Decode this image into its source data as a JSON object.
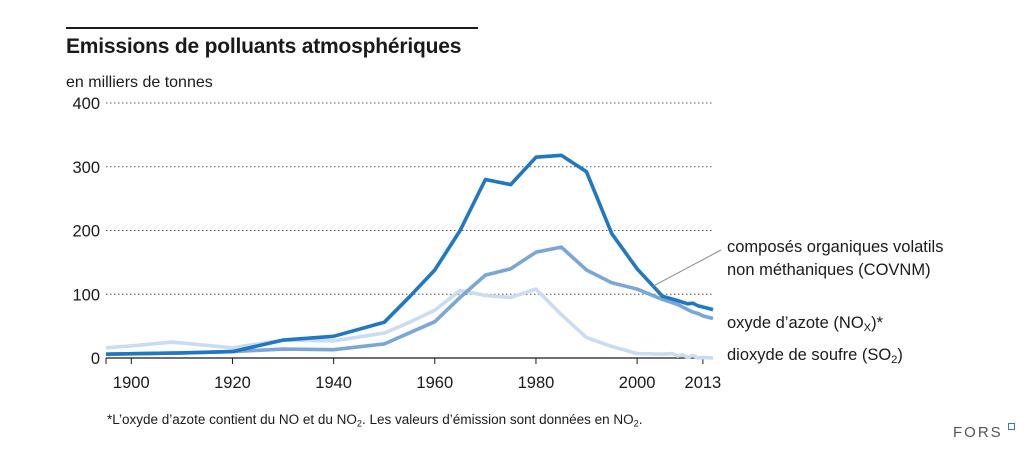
{
  "chart_data": {
    "type": "line",
    "title": "Emissions de polluants atmosphériques",
    "ylabel": "en milliers de tonnes",
    "xlabel": "",
    "xlim": [
      1895,
      2015
    ],
    "ylim": [
      0,
      400
    ],
    "yticks": [
      0,
      100,
      200,
      300,
      400
    ],
    "xticks": [
      1900,
      1920,
      1940,
      1960,
      1980,
      2000,
      2013
    ],
    "grid": "horizontal-dotted",
    "series": [
      {
        "name": "composés organiques volatils non méthaniques (COVNM)",
        "label_lines": [
          "composés organiques volatils",
          "non méthaniques (COVNM)"
        ],
        "color": "#1f78c1",
        "points": [
          [
            1895,
            6
          ],
          [
            1910,
            8
          ],
          [
            1920,
            10
          ],
          [
            1930,
            28
          ],
          [
            1940,
            34
          ],
          [
            1950,
            56
          ],
          [
            1955,
            96
          ],
          [
            1960,
            138
          ],
          [
            1965,
            200
          ],
          [
            1970,
            280
          ],
          [
            1975,
            272
          ],
          [
            1980,
            315
          ],
          [
            1985,
            318
          ],
          [
            1990,
            292
          ],
          [
            1995,
            195
          ],
          [
            2000,
            140
          ],
          [
            2005,
            97
          ],
          [
            2008,
            90
          ],
          [
            2010,
            85
          ],
          [
            2011,
            86
          ],
          [
            2012,
            82
          ],
          [
            2013,
            80
          ],
          [
            2015,
            76
          ]
        ]
      },
      {
        "name": "oxyde d'azote (NOx)*",
        "label_prefix": "oxyde d’azote (NO",
        "label_sub": "X",
        "label_suffix": ")*",
        "color": "#7aa7d6",
        "points": [
          [
            1895,
            6
          ],
          [
            1910,
            8
          ],
          [
            1920,
            10
          ],
          [
            1930,
            14
          ],
          [
            1940,
            13
          ],
          [
            1950,
            22
          ],
          [
            1960,
            57
          ],
          [
            1965,
            95
          ],
          [
            1970,
            130
          ],
          [
            1975,
            140
          ],
          [
            1980,
            166
          ],
          [
            1985,
            174
          ],
          [
            1990,
            138
          ],
          [
            1995,
            118
          ],
          [
            2000,
            108
          ],
          [
            2005,
            92
          ],
          [
            2008,
            84
          ],
          [
            2010,
            76
          ],
          [
            2011,
            72
          ],
          [
            2012,
            70
          ],
          [
            2013,
            66
          ],
          [
            2015,
            62
          ]
        ]
      },
      {
        "name": "dioxyde de soufre (SO2)",
        "label_prefix": "dioxyde de soufre (SO",
        "label_sub": "2",
        "label_suffix": ")",
        "color": "#c9dcf0",
        "points": [
          [
            1895,
            16
          ],
          [
            1900,
            19
          ],
          [
            1908,
            25
          ],
          [
            1920,
            16
          ],
          [
            1930,
            28
          ],
          [
            1940,
            27
          ],
          [
            1950,
            39
          ],
          [
            1955,
            56
          ],
          [
            1960,
            75
          ],
          [
            1965,
            106
          ],
          [
            1970,
            98
          ],
          [
            1975,
            95
          ],
          [
            1980,
            108
          ],
          [
            1985,
            68
          ],
          [
            1990,
            32
          ],
          [
            1995,
            18
          ],
          [
            2000,
            7
          ],
          [
            2005,
            6
          ],
          [
            2007,
            7
          ],
          [
            2008,
            3
          ],
          [
            2009,
            5
          ],
          [
            2010,
            1
          ],
          [
            2011,
            4
          ],
          [
            2012,
            0
          ],
          [
            2013,
            1
          ],
          [
            2015,
            0
          ]
        ]
      }
    ],
    "footnote": {
      "prefix": "*L’oxyde d’azote contient du NO et du NO",
      "sub": "2",
      "suffix": ". Les valeurs d’émission sont données en NO",
      "sub2": "2",
      "end": "."
    }
  },
  "logo": "FORS"
}
